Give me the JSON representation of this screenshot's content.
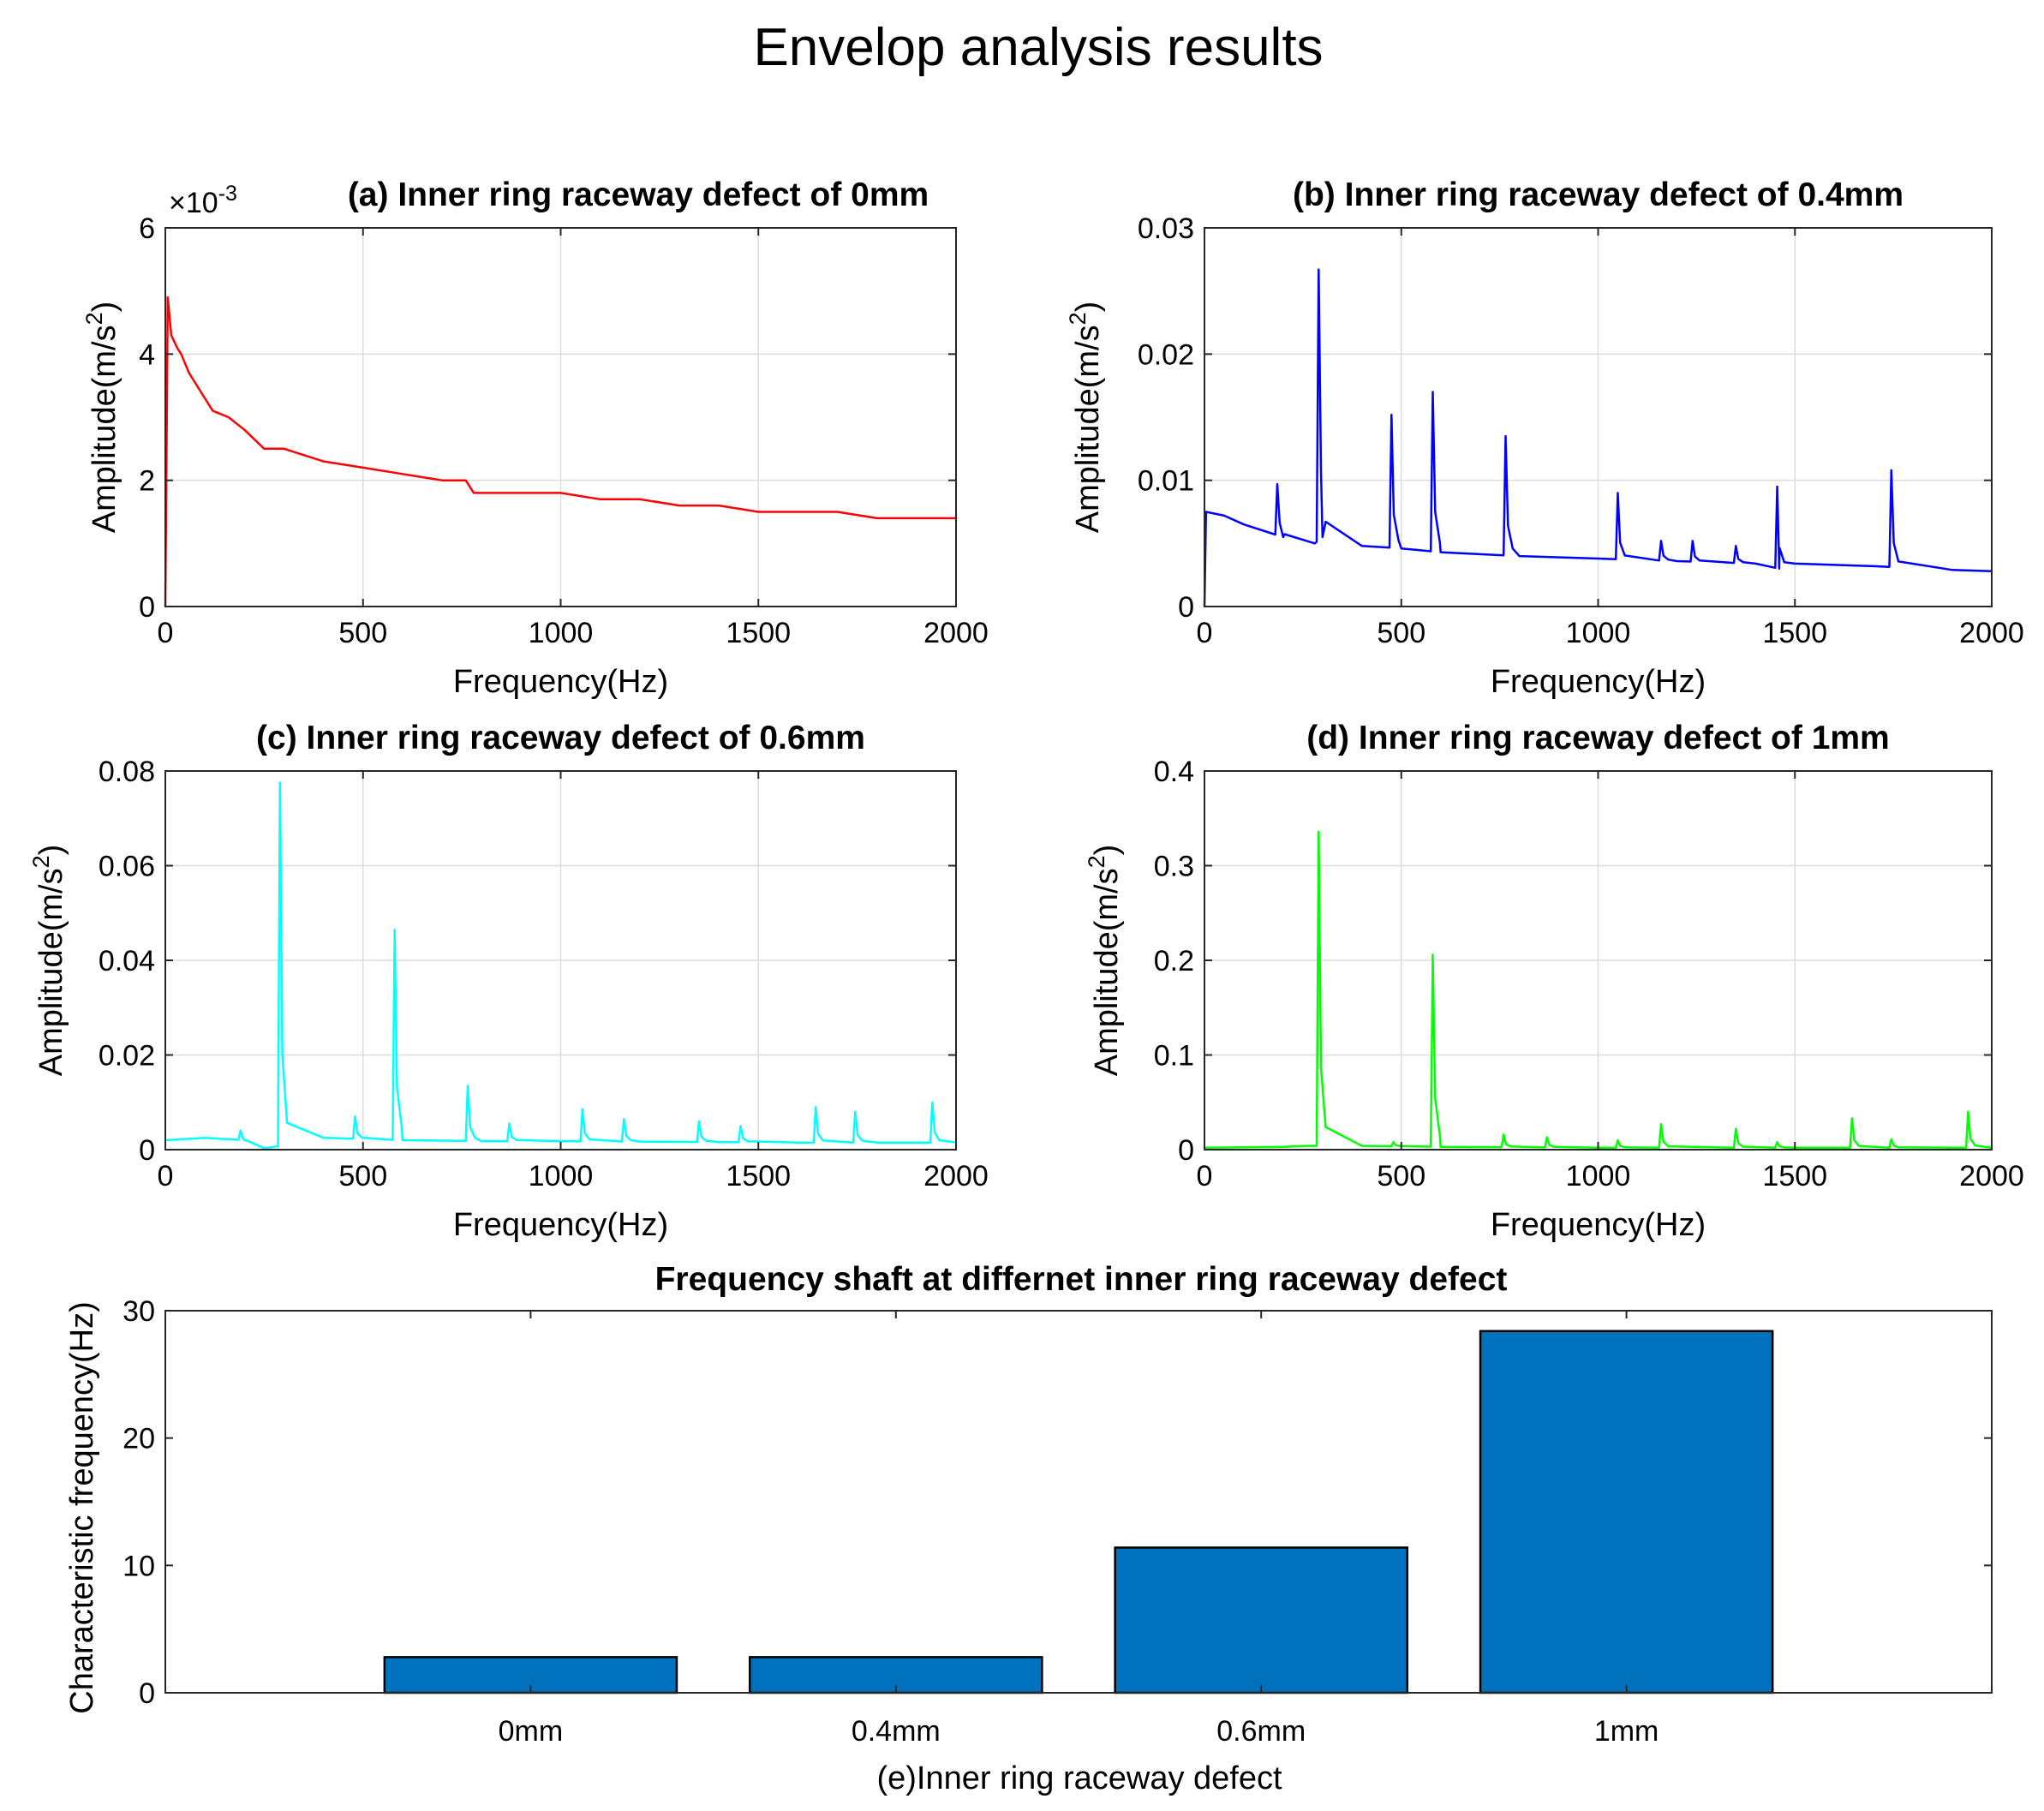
{
  "figure": {
    "title": "Envelop analysis results",
    "colors": {
      "axis": "#262626",
      "grid": "#dcdcdc",
      "bar": "#0072bd"
    }
  },
  "chart_data": [
    {
      "id": "a",
      "type": "line",
      "title": "(a) Inner ring raceway defect of 0mm",
      "xlabel": "Frequency(Hz)",
      "ylabel": "Amplitude(m/s",
      "ylabel_sup": "2",
      "ylabel_end": ")",
      "xlim": [
        0,
        2000
      ],
      "ylim": [
        0,
        0.006
      ],
      "xticks": [
        0,
        500,
        1000,
        1500,
        2000
      ],
      "yticks": [
        0,
        0.002,
        0.004,
        0.006
      ],
      "yticklabels": [
        "0",
        "2",
        "4",
        "6"
      ],
      "exponent": {
        "base": "×10",
        "power": "-3"
      },
      "color": "#ff0000",
      "series": [
        {
          "name": "0mm",
          "points": [
            [
              0,
              0
            ],
            [
              6,
              0.0049
            ],
            [
              15,
              0.0043
            ],
            [
              30,
              0.0041
            ],
            [
              40,
              0.004
            ],
            [
              60,
              0.0037
            ],
            [
              90,
              0.0034
            ],
            [
              120,
              0.0031
            ],
            [
              160,
              0.003
            ],
            [
              200,
              0.0028
            ],
            [
              250,
              0.0025
            ],
            [
              300,
              0.0025
            ],
            [
              400,
              0.0023
            ],
            [
              500,
              0.0022
            ],
            [
              600,
              0.0021
            ],
            [
              700,
              0.002
            ],
            [
              760,
              0.002
            ],
            [
              780,
              0.0018
            ],
            [
              850,
              0.0018
            ],
            [
              1000,
              0.0018
            ],
            [
              1100,
              0.0017
            ],
            [
              1200,
              0.0017
            ],
            [
              1300,
              0.0016
            ],
            [
              1400,
              0.0016
            ],
            [
              1500,
              0.0015
            ],
            [
              1600,
              0.0015
            ],
            [
              1700,
              0.0015
            ],
            [
              1800,
              0.0014
            ],
            [
              1900,
              0.0014
            ],
            [
              2000,
              0.0014
            ]
          ]
        }
      ]
    },
    {
      "id": "b",
      "type": "line",
      "title": "(b) Inner ring raceway defect of 0.4mm",
      "xlabel": "Frequency(Hz)",
      "ylabel": "Amplitude(m/s",
      "ylabel_sup": "2",
      "ylabel_end": ")",
      "xlim": [
        0,
        2000
      ],
      "ylim": [
        0,
        0.03
      ],
      "xticks": [
        0,
        500,
        1000,
        1500,
        2000
      ],
      "yticks": [
        0,
        0.01,
        0.02,
        0.03
      ],
      "yticklabels": [
        "0",
        "0.01",
        "0.02",
        "0.03"
      ],
      "color": "#0000ff",
      "series": [
        {
          "name": "0.4mm",
          "baseline": [
            [
              0,
              0
            ],
            [
              4,
              0.0075
            ],
            [
              50,
              0.0072
            ],
            [
              100,
              0.0065
            ],
            [
              200,
              0.0055
            ],
            [
              280,
              0.005
            ],
            [
              300,
              0.0055
            ],
            [
              400,
              0.0048
            ],
            [
              500,
              0.0046
            ],
            [
              600,
              0.0043
            ],
            [
              800,
              0.004
            ],
            [
              1000,
              0.0038
            ],
            [
              1200,
              0.0036
            ],
            [
              1400,
              0.0034
            ],
            [
              1460,
              0.003
            ],
            [
              1500,
              0.0034
            ],
            [
              1700,
              0.0032
            ],
            [
              1900,
              0.0029
            ],
            [
              2000,
              0.0028
            ]
          ],
          "peaks": [
            [
              185,
              0.0097
            ],
            [
              290,
              0.0267
            ],
            [
              475,
              0.0152
            ],
            [
              580,
              0.017
            ],
            [
              765,
              0.0135
            ],
            [
              1050,
              0.009
            ],
            [
              1160,
              0.0052
            ],
            [
              1240,
              0.0052
            ],
            [
              1350,
              0.0048
            ],
            [
              1455,
              0.0095
            ],
            [
              1745,
              0.0108
            ]
          ]
        }
      ]
    },
    {
      "id": "c",
      "type": "line",
      "title": "(c) Inner ring raceway defect of 0.6mm",
      "xlabel": "Frequency(Hz)",
      "ylabel": "Amplitude(m/s",
      "ylabel_sup": "2",
      "ylabel_end": ")",
      "xlim": [
        0,
        2000
      ],
      "ylim": [
        0,
        0.08
      ],
      "xticks": [
        0,
        500,
        1000,
        1500,
        2000
      ],
      "yticks": [
        0,
        0.02,
        0.04,
        0.06,
        0.08
      ],
      "yticklabels": [
        "0",
        "0.02",
        "0.04",
        "0.06",
        "0.08"
      ],
      "color": "#00ffff",
      "series": [
        {
          "name": "0.6mm",
          "baseline": [
            [
              0,
              0.002
            ],
            [
              100,
              0.0025
            ],
            [
              200,
              0.002
            ],
            [
              250,
              0.0003
            ],
            [
              270,
              0.0005
            ],
            [
              400,
              0.0025
            ],
            [
              600,
              0.002
            ],
            [
              800,
              0.0018
            ],
            [
              1000,
              0.0018
            ],
            [
              1200,
              0.0017
            ],
            [
              1400,
              0.0016
            ],
            [
              1600,
              0.0015
            ],
            [
              1800,
              0.0015
            ],
            [
              2000,
              0.0015
            ]
          ],
          "peaks": [
            [
              190,
              0.004
            ],
            [
              290,
              0.0775
            ],
            [
              480,
              0.007
            ],
            [
              580,
              0.0465
            ],
            [
              765,
              0.0135
            ],
            [
              870,
              0.0055
            ],
            [
              1055,
              0.0085
            ],
            [
              1160,
              0.0065
            ],
            [
              1350,
              0.006
            ],
            [
              1455,
              0.005
            ],
            [
              1645,
              0.009
            ],
            [
              1745,
              0.008
            ],
            [
              1940,
              0.01
            ]
          ]
        }
      ]
    },
    {
      "id": "d",
      "type": "line",
      "title": "(d) Inner ring raceway defect of 1mm",
      "xlabel": "Frequency(Hz)",
      "ylabel": "Amplitude(m/s",
      "ylabel_sup": "2",
      "ylabel_end": ")",
      "xlim": [
        0,
        2000
      ],
      "ylim": [
        0,
        0.4
      ],
      "xticks": [
        0,
        500,
        1000,
        1500,
        2000
      ],
      "yticks": [
        0,
        0.1,
        0.2,
        0.3,
        0.4
      ],
      "yticklabels": [
        "0",
        "0.1",
        "0.2",
        "0.3",
        "0.4"
      ],
      "color": "#00ff00",
      "series": [
        {
          "name": "1mm",
          "baseline": [
            [
              0,
              0.002
            ],
            [
              200,
              0.003
            ],
            [
              260,
              0.004
            ],
            [
              400,
              0.004
            ],
            [
              600,
              0.003
            ],
            [
              1000,
              0.002
            ],
            [
              1500,
              0.002
            ],
            [
              2000,
              0.002
            ]
          ],
          "peaks": [
            [
              290,
              0.336
            ],
            [
              480,
              0.008
            ],
            [
              580,
              0.206
            ],
            [
              760,
              0.016
            ],
            [
              870,
              0.013
            ],
            [
              1050,
              0.01
            ],
            [
              1160,
              0.027
            ],
            [
              1350,
              0.022
            ],
            [
              1455,
              0.008
            ],
            [
              1645,
              0.033
            ],
            [
              1745,
              0.011
            ],
            [
              1940,
              0.04
            ]
          ]
        }
      ]
    },
    {
      "id": "e",
      "type": "bar",
      "title": "Frequency shaft at differnet inner ring raceway defect",
      "xlabel": "(e)Inner ring raceway defect",
      "ylabel": "Characteristic frequency(Hz)",
      "categories": [
        "0mm",
        "0.4mm",
        "0.6mm",
        "1mm"
      ],
      "values": [
        2.8,
        2.8,
        11.4,
        28.4
      ],
      "xlim": [
        0,
        5
      ],
      "ylim": [
        0,
        30
      ],
      "yticks": [
        0,
        10,
        20,
        30
      ],
      "yticklabels": [
        "0",
        "10",
        "20",
        "30"
      ],
      "color": "#0072bd"
    }
  ]
}
